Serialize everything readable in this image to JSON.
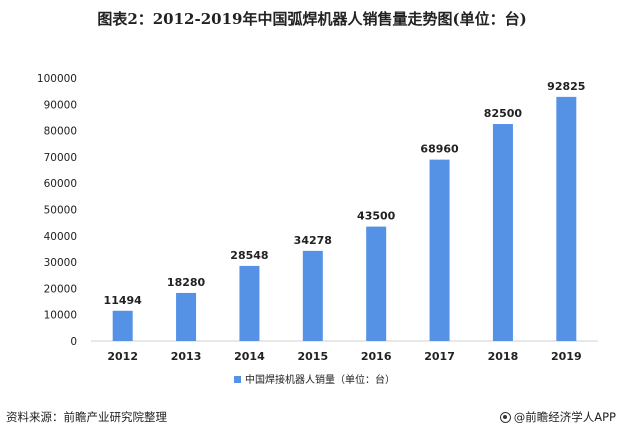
{
  "title": "图表2：2012-2019年中国弧焊机器人销售量走势图(单位：台)",
  "source": "资料来源：前瞻产业研究院整理",
  "brand": "@前瞻经济学人APP",
  "colors": {
    "bar": "#5592e6",
    "axis": "#d0d0d0",
    "label": "#222222"
  },
  "chart_data": {
    "type": "bar",
    "categories": [
      "2012",
      "2013",
      "2014",
      "2015",
      "2016",
      "2017",
      "2018",
      "2019"
    ],
    "series": [
      {
        "name": "中国焊接机器人销量（单位：台）",
        "values": [
          11494,
          18280,
          28548,
          34278,
          43500,
          68960,
          82500,
          92825
        ]
      }
    ],
    "yticks": [
      0,
      10000,
      20000,
      30000,
      40000,
      50000,
      60000,
      70000,
      80000,
      90000,
      100000
    ],
    "ylim": [
      0,
      100000
    ],
    "legend_position": "bottom",
    "grid": false
  }
}
